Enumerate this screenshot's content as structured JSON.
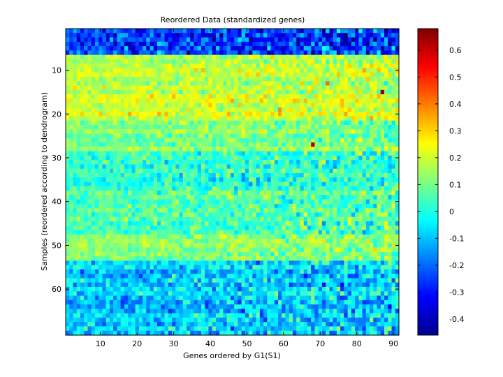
{
  "chart_data": {
    "type": "heatmap",
    "title": "Reordered Data (standardized genes)",
    "xlabel": "Genes ordered by G1(S1)",
    "ylabel": "Samples (reordered according to dendrogram)",
    "n_cols": 91,
    "n_rows": 70,
    "xlim": [
      0.5,
      91.5
    ],
    "ylim": [
      0.5,
      70.5
    ],
    "y_reversed": true,
    "x_ticks": [
      10,
      20,
      30,
      40,
      50,
      60,
      70,
      80,
      90
    ],
    "y_ticks": [
      10,
      20,
      30,
      40,
      50,
      60
    ],
    "colormap": "jet",
    "clim": [
      -0.46,
      0.68
    ],
    "colorbar_ticks": [
      -0.4,
      -0.3,
      -0.2,
      -0.1,
      0,
      0.1,
      0.2,
      0.3,
      0.4,
      0.5,
      0.6
    ],
    "colorbar_tick_labels": [
      "-0.4",
      "-0.3",
      "-0.2",
      "-0.1",
      "0",
      "0.1",
      "0.2",
      "0.3",
      "0.4",
      "0.5",
      "0.6"
    ],
    "row_band_means": [
      {
        "rows": [
          1,
          6
        ],
        "mean": -0.25,
        "noise": 0.08
      },
      {
        "rows": [
          7,
          15
        ],
        "mean": 0.17,
        "noise": 0.05
      },
      {
        "rows": [
          16,
          21
        ],
        "mean": 0.21,
        "noise": 0.05
      },
      {
        "rows": [
          22,
          28
        ],
        "mean": 0.12,
        "noise": 0.05
      },
      {
        "rows": [
          29,
          36
        ],
        "mean": 0.02,
        "noise": 0.06
      },
      {
        "rows": [
          37,
          47
        ],
        "mean": 0.06,
        "noise": 0.06
      },
      {
        "rows": [
          48,
          53
        ],
        "mean": 0.14,
        "noise": 0.05
      },
      {
        "rows": [
          54,
          70
        ],
        "mean": -0.08,
        "noise": 0.07
      }
    ],
    "notable_cells": [
      {
        "col": 87,
        "row": 15,
        "value": 0.65
      },
      {
        "col": 68,
        "row": 27,
        "value": 0.62
      },
      {
        "col": 77,
        "row": 20,
        "value": 0.35
      },
      {
        "col": 72,
        "row": 13,
        "value": 0.42
      },
      {
        "col": 59,
        "row": 19,
        "value": 0.38
      }
    ]
  }
}
